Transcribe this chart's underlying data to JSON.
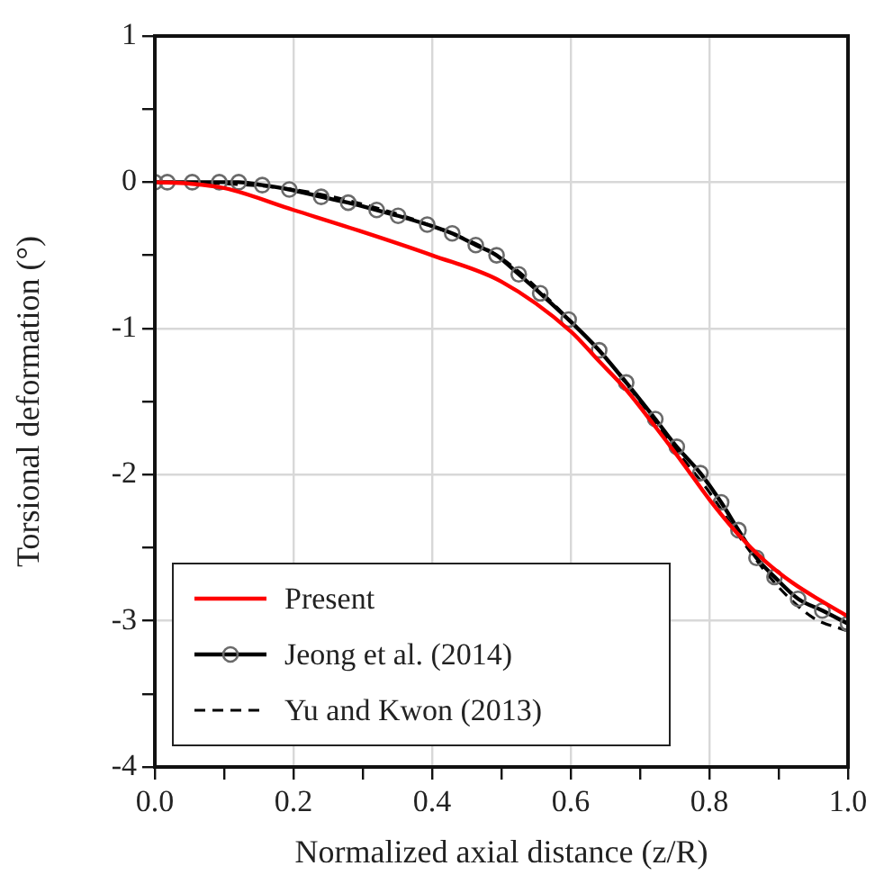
{
  "chart_data": {
    "type": "line",
    "xlabel": "Normalized axial distance (z/R)",
    "ylabel": "Torsional deformation (°)",
    "xlim": [
      0,
      1
    ],
    "ylim": [
      -4,
      1
    ],
    "xticks": [
      {
        "value": 0,
        "label": "0.0"
      },
      {
        "value": 0.1,
        "label": null
      },
      {
        "value": 0.2,
        "label": "0.2"
      },
      {
        "value": 0.3,
        "label": null
      },
      {
        "value": 0.4,
        "label": "0.4"
      },
      {
        "value": 0.5,
        "label": null
      },
      {
        "value": 0.6,
        "label": "0.6"
      },
      {
        "value": 0.7,
        "label": null
      },
      {
        "value": 0.8,
        "label": "0.8"
      },
      {
        "value": 0.9,
        "label": null
      },
      {
        "value": 1,
        "label": "1.0"
      }
    ],
    "yticks": [
      -4,
      {
        "value": -3.5,
        "label": null
      },
      -3,
      {
        "value": -2.5,
        "label": null
      },
      -2,
      {
        "value": -1.5,
        "label": null
      },
      -1,
      {
        "value": -0.5,
        "label": null
      },
      0,
      {
        "value": 0.5,
        "label": null
      },
      1
    ],
    "grid": true,
    "legend": "bottom left",
    "series": [
      {
        "name": "Present",
        "color": "#ff0000",
        "marker": "none",
        "line_style": "solid",
        "x": [
          0,
          0.05,
          0.1,
          0.2,
          0.3,
          0.4,
          0.5,
          0.6,
          0.64,
          0.68,
          0.72,
          0.76,
          0.8,
          0.84,
          0.88,
          0.92,
          0.96,
          1.0
        ],
        "values": [
          0,
          -0.01,
          -0.04,
          -0.19,
          -0.34,
          -0.5,
          -0.68,
          -1.02,
          -1.22,
          -1.42,
          -1.66,
          -1.91,
          -2.17,
          -2.4,
          -2.59,
          -2.74,
          -2.86,
          -2.97
        ]
      },
      {
        "name": "Jeong et al. (2014)",
        "color": "#000000",
        "marker": "circle",
        "line_style": "solid",
        "x": [
          0,
          0.018,
          0.054,
          0.093,
          0.121,
          0.155,
          0.194,
          0.24,
          0.279,
          0.32,
          0.351,
          0.393,
          0.429,
          0.463,
          0.493,
          0.525,
          0.556,
          0.597,
          0.641,
          0.68,
          0.722,
          0.753,
          0.787,
          0.817,
          0.842,
          0.868,
          0.894,
          0.928,
          0.963,
          1.0
        ],
        "values": [
          0,
          0,
          0,
          0,
          0,
          -0.02,
          -0.05,
          -0.1,
          -0.14,
          -0.19,
          -0.23,
          -0.29,
          -0.35,
          -0.43,
          -0.5,
          -0.63,
          -0.76,
          -0.94,
          -1.15,
          -1.37,
          -1.62,
          -1.81,
          -1.99,
          -2.19,
          -2.38,
          -2.57,
          -2.7,
          -2.85,
          -2.93,
          -3.02
        ]
      },
      {
        "name": "Yu and Kwon (2013)",
        "color": "#000000",
        "marker": "none",
        "line_style": "dashed",
        "x": [
          0,
          0.1,
          0.2,
          0.3,
          0.4,
          0.5,
          0.6,
          0.65,
          0.7,
          0.75,
          0.8,
          0.85,
          0.9,
          0.95,
          1.0
        ],
        "values": [
          0,
          -0.01,
          -0.05,
          -0.15,
          -0.3,
          -0.52,
          -0.95,
          -1.2,
          -1.5,
          -1.82,
          -2.12,
          -2.47,
          -2.77,
          -2.98,
          -3.07
        ]
      }
    ]
  }
}
